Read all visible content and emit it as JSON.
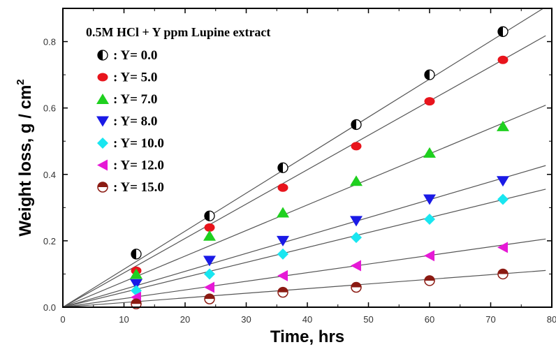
{
  "chart_data": {
    "type": "scatter",
    "title": "",
    "xlabel": "Time, hrs",
    "ylabel": "Weight loss, g / cm",
    "ylabel_sup": "2",
    "xlim": [
      0,
      80
    ],
    "ylim": [
      0,
      0.9
    ],
    "xticks": [
      "0",
      "10",
      "20",
      "30",
      "40",
      "50",
      "60",
      "70",
      "80"
    ],
    "yticks": [
      "0.0",
      "0.2",
      "0.4",
      "0.6",
      "0.8"
    ],
    "grid": false,
    "legend_title": "0.5M HCl + Y ppm Lupine extract",
    "legend_position": "top-left",
    "x": [
      12,
      24,
      36,
      48,
      60,
      72
    ],
    "series": [
      {
        "name": ": Y= 0.0",
        "marker": "half-circle",
        "color": "#000000",
        "values": [
          0.16,
          0.275,
          0.42,
          0.55,
          0.7,
          0.83
        ],
        "fit_slope": 0.01145
      },
      {
        "name": ": Y= 5.0",
        "marker": "circle",
        "color": "#e8141c",
        "values": [
          0.11,
          0.24,
          0.36,
          0.485,
          0.62,
          0.745
        ],
        "fit_slope": 0.01035
      },
      {
        "name": ": Y= 7.0",
        "marker": "triangle-up",
        "color": "#1fd01f",
        "values": [
          0.1,
          0.215,
          0.285,
          0.38,
          0.465,
          0.545
        ],
        "fit_slope": 0.0077
      },
      {
        "name": ": Y= 8.0",
        "marker": "triangle-down",
        "color": "#1a1ae6",
        "values": [
          0.07,
          0.14,
          0.2,
          0.26,
          0.325,
          0.38
        ],
        "fit_slope": 0.0054
      },
      {
        "name": ": Y= 10.0",
        "marker": "diamond",
        "color": "#19e6f0",
        "values": [
          0.05,
          0.1,
          0.16,
          0.21,
          0.265,
          0.325
        ],
        "fit_slope": 0.0045
      },
      {
        "name": ": Y= 12.0",
        "marker": "triangle-left",
        "color": "#e619d6",
        "values": [
          0.03,
          0.06,
          0.095,
          0.125,
          0.155,
          0.18
        ],
        "fit_slope": 0.0026
      },
      {
        "name": ": Y= 15.0",
        "marker": "half-circle-alt",
        "color": "#8b1a12",
        "values": [
          0.01,
          0.025,
          0.045,
          0.06,
          0.08,
          0.1
        ],
        "fit_slope": 0.0014
      }
    ]
  }
}
